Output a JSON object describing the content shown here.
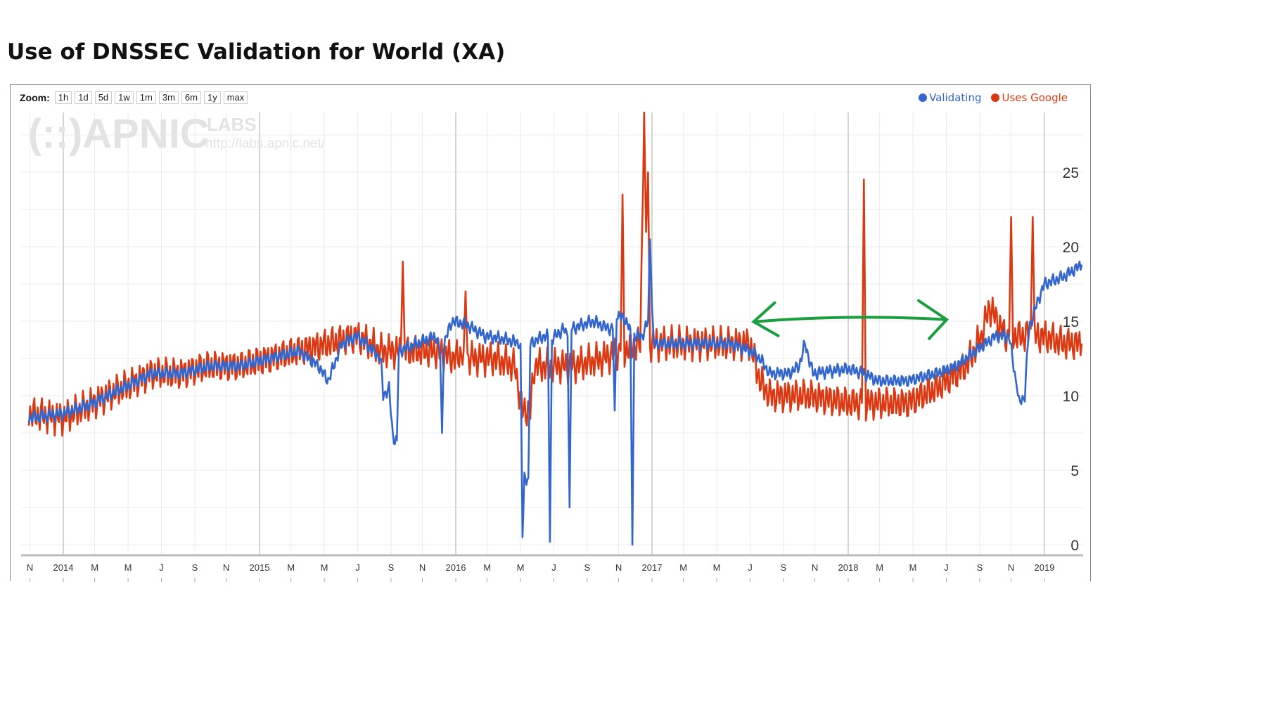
{
  "title": "Use of DNSSEC Validation for World (XA)",
  "zoom": {
    "label": "Zoom:",
    "buttons": [
      "1h",
      "1d",
      "5d",
      "1w",
      "1m",
      "3m",
      "6m",
      "1y",
      "max"
    ]
  },
  "watermark": {
    "logo": "(::)APNIC",
    "labs": "LABS",
    "url": "http://labs.apnic.net/"
  },
  "chart_data": {
    "type": "line",
    "title": "Use of DNSSEC Validation for World (XA)",
    "xlabel": "",
    "ylabel": "",
    "ylim": [
      0,
      28
    ],
    "xlim": [
      2013.82,
      2019.2
    ],
    "yticks": [
      0,
      5,
      10,
      15,
      20,
      25
    ],
    "grid": true,
    "legend": "top-right",
    "xticks": [
      {
        "t": 2013.83,
        "label": "N"
      },
      {
        "t": 2014.0,
        "label": "2014"
      },
      {
        "t": 2014.16,
        "label": "M"
      },
      {
        "t": 2014.33,
        "label": "M"
      },
      {
        "t": 2014.5,
        "label": "J"
      },
      {
        "t": 2014.67,
        "label": "S"
      },
      {
        "t": 2014.83,
        "label": "N"
      },
      {
        "t": 2015.0,
        "label": "2015"
      },
      {
        "t": 2015.16,
        "label": "M"
      },
      {
        "t": 2015.33,
        "label": "M"
      },
      {
        "t": 2015.5,
        "label": "J"
      },
      {
        "t": 2015.67,
        "label": "S"
      },
      {
        "t": 2015.83,
        "label": "N"
      },
      {
        "t": 2016.0,
        "label": "2016"
      },
      {
        "t": 2016.16,
        "label": "M"
      },
      {
        "t": 2016.33,
        "label": "M"
      },
      {
        "t": 2016.5,
        "label": "J"
      },
      {
        "t": 2016.67,
        "label": "S"
      },
      {
        "t": 2016.83,
        "label": "N"
      },
      {
        "t": 2017.0,
        "label": "2017"
      },
      {
        "t": 2017.16,
        "label": "M"
      },
      {
        "t": 2017.33,
        "label": "M"
      },
      {
        "t": 2017.5,
        "label": "J"
      },
      {
        "t": 2017.67,
        "label": "S"
      },
      {
        "t": 2017.83,
        "label": "N"
      },
      {
        "t": 2018.0,
        "label": "2018"
      },
      {
        "t": 2018.16,
        "label": "M"
      },
      {
        "t": 2018.33,
        "label": "M"
      },
      {
        "t": 2018.5,
        "label": "J"
      },
      {
        "t": 2018.67,
        "label": "S"
      },
      {
        "t": 2018.83,
        "label": "N"
      },
      {
        "t": 2019.0,
        "label": "2019"
      }
    ],
    "series": [
      {
        "name": "Validating",
        "color": "#3366cc",
        "points": [
          [
            2013.82,
            8.5
          ],
          [
            2014.0,
            8.8
          ],
          [
            2014.15,
            9.5
          ],
          [
            2014.3,
            10.5
          ],
          [
            2014.45,
            11.5
          ],
          [
            2014.6,
            11.5
          ],
          [
            2014.75,
            12
          ],
          [
            2014.9,
            12
          ],
          [
            2015.05,
            12.5
          ],
          [
            2015.2,
            13
          ],
          [
            2015.3,
            12
          ],
          [
            2015.35,
            11
          ],
          [
            2015.42,
            13.5
          ],
          [
            2015.5,
            14
          ],
          [
            2015.58,
            13
          ],
          [
            2015.62,
            12.5
          ],
          [
            2015.63,
            10
          ],
          [
            2015.66,
            10.5
          ],
          [
            2015.68,
            7.2
          ],
          [
            2015.7,
            7
          ],
          [
            2015.71,
            13
          ],
          [
            2015.8,
            13.5
          ],
          [
            2015.9,
            14
          ],
          [
            2015.92,
            13
          ],
          [
            2015.93,
            7.5
          ],
          [
            2015.94,
            13.5
          ],
          [
            2015.98,
            15
          ],
          [
            2016.05,
            14.8
          ],
          [
            2016.15,
            14
          ],
          [
            2016.25,
            13.8
          ],
          [
            2016.33,
            13.5
          ],
          [
            2016.34,
            0.5
          ],
          [
            2016.35,
            4.5
          ],
          [
            2016.37,
            4.5
          ],
          [
            2016.38,
            13.5
          ],
          [
            2016.45,
            14
          ],
          [
            2016.47,
            14
          ],
          [
            2016.48,
            0.2
          ],
          [
            2016.49,
            13.8
          ],
          [
            2016.55,
            14.5
          ],
          [
            2016.57,
            14
          ],
          [
            2016.58,
            2.5
          ],
          [
            2016.59,
            14.5
          ],
          [
            2016.7,
            15
          ],
          [
            2016.78,
            14.5
          ],
          [
            2016.8,
            14.5
          ],
          [
            2016.81,
            9
          ],
          [
            2016.82,
            15.5
          ],
          [
            2016.87,
            15
          ],
          [
            2016.89,
            14.5
          ],
          [
            2016.9,
            0
          ],
          [
            2016.91,
            14
          ],
          [
            2016.95,
            14
          ],
          [
            2016.98,
            15
          ],
          [
            2016.99,
            20.5
          ],
          [
            2017.0,
            16
          ],
          [
            2017.01,
            13.5
          ],
          [
            2017.2,
            13.5
          ],
          [
            2017.4,
            13.5
          ],
          [
            2017.5,
            13
          ],
          [
            2017.55,
            12.5
          ],
          [
            2017.6,
            11.5
          ],
          [
            2017.7,
            11.5
          ],
          [
            2017.75,
            12
          ],
          [
            2017.78,
            13.5
          ],
          [
            2017.82,
            11.5
          ],
          [
            2018.0,
            11.8
          ],
          [
            2018.08,
            11.5
          ],
          [
            2018.15,
            11
          ],
          [
            2018.3,
            11
          ],
          [
            2018.45,
            11.5
          ],
          [
            2018.55,
            12
          ],
          [
            2018.65,
            13
          ],
          [
            2018.75,
            14
          ],
          [
            2018.82,
            14
          ],
          [
            2018.86,
            10.5
          ],
          [
            2018.87,
            9.5
          ],
          [
            2018.9,
            10
          ],
          [
            2018.92,
            14.5
          ],
          [
            2018.97,
            16.5
          ],
          [
            2019.0,
            17.5
          ],
          [
            2019.1,
            18
          ],
          [
            2019.19,
            18.8
          ]
        ]
      },
      {
        "name": "Uses Google",
        "color": "#dc3912",
        "points": [
          [
            2013.82,
            8.8
          ],
          [
            2014.0,
            8.5
          ],
          [
            2014.15,
            9.5
          ],
          [
            2014.3,
            10.5
          ],
          [
            2014.45,
            11.5
          ],
          [
            2014.6,
            11.5
          ],
          [
            2014.75,
            12
          ],
          [
            2014.9,
            12
          ],
          [
            2015.05,
            12.5
          ],
          [
            2015.2,
            13
          ],
          [
            2015.35,
            13.5
          ],
          [
            2015.5,
            14
          ],
          [
            2015.62,
            13
          ],
          [
            2015.72,
            13
          ],
          [
            2015.73,
            19
          ],
          [
            2015.74,
            13
          ],
          [
            2015.9,
            13
          ],
          [
            2016.0,
            12.5
          ],
          [
            2016.04,
            13
          ],
          [
            2016.05,
            17
          ],
          [
            2016.06,
            12.5
          ],
          [
            2016.2,
            12.5
          ],
          [
            2016.3,
            12
          ],
          [
            2016.34,
            9
          ],
          [
            2016.38,
            9
          ],
          [
            2016.4,
            12
          ],
          [
            2016.5,
            12
          ],
          [
            2016.6,
            12
          ],
          [
            2016.75,
            12.5
          ],
          [
            2016.84,
            13
          ],
          [
            2016.85,
            23.5
          ],
          [
            2016.86,
            13
          ],
          [
            2016.94,
            13.5
          ],
          [
            2016.96,
            29
          ],
          [
            2016.97,
            21
          ],
          [
            2016.98,
            25
          ],
          [
            2016.99,
            13.5
          ],
          [
            2017.2,
            13.5
          ],
          [
            2017.4,
            13.5
          ],
          [
            2017.5,
            13.5
          ],
          [
            2017.55,
            11
          ],
          [
            2017.6,
            10
          ],
          [
            2017.8,
            10
          ],
          [
            2018.0,
            9.5
          ],
          [
            2018.07,
            9.5
          ],
          [
            2018.08,
            24.5
          ],
          [
            2018.09,
            9.5
          ],
          [
            2018.3,
            9.5
          ],
          [
            2018.45,
            10.5
          ],
          [
            2018.6,
            12
          ],
          [
            2018.68,
            14
          ],
          [
            2018.72,
            16
          ],
          [
            2018.8,
            14
          ],
          [
            2018.82,
            14
          ],
          [
            2018.83,
            22
          ],
          [
            2018.84,
            14
          ],
          [
            2018.9,
            14
          ],
          [
            2018.93,
            14.5
          ],
          [
            2018.94,
            22
          ],
          [
            2018.95,
            14
          ],
          [
            2019.0,
            14
          ],
          [
            2019.1,
            13.5
          ],
          [
            2019.19,
            13.5
          ]
        ]
      }
    ],
    "annotation": {
      "type": "double-arrow",
      "color": "#1a9e3f",
      "from": 2017.5,
      "to": 2018.52,
      "y": 15.2
    }
  }
}
